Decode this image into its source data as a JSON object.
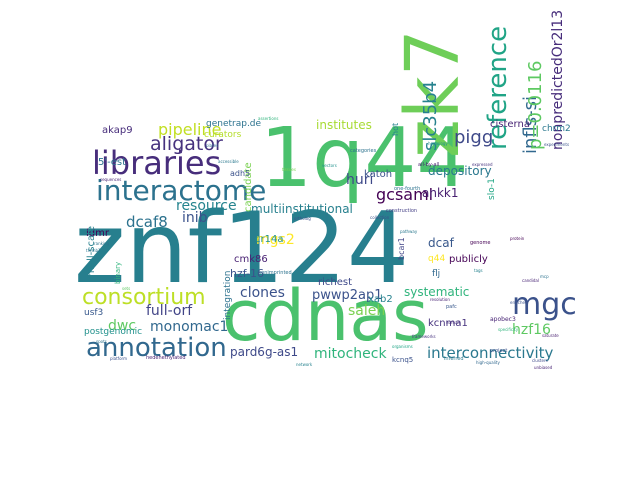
{
  "words": [
    {
      "text": "znf124",
      "color": "#277f8e"
    },
    {
      "text": "1q44",
      "color": "#4ac16d"
    },
    {
      "text": "cdnas",
      "color": "#4ac16d"
    },
    {
      "text": "zk7",
      "color": "#6ece58"
    },
    {
      "text": "libraries",
      "color": "#472d7b"
    },
    {
      "text": "interactome",
      "color": "#2c728e"
    },
    {
      "text": "mgc",
      "color": "#3b528b"
    },
    {
      "text": "reference",
      "color": "#20a486"
    },
    {
      "text": "consortium",
      "color": "#bddf26"
    },
    {
      "text": "annotation",
      "color": "#31688e"
    },
    {
      "text": "aligator",
      "color": "#46327e"
    },
    {
      "text": "pipeline",
      "color": "#c2df23"
    },
    {
      "text": "pigg",
      "color": "#3e4989"
    },
    {
      "text": "slc35b4",
      "color": "#26828e"
    },
    {
      "text": "infls-si",
      "color": "#31688e"
    },
    {
      "text": "p=0.0116",
      "color": "#5ec962"
    },
    {
      "text": "nonpredictedOr2l13",
      "color": "#472d7b"
    },
    {
      "text": "interconnectivity",
      "color": "#2a788e"
    },
    {
      "text": "mitocheck",
      "color": "#2fb47c"
    },
    {
      "text": "pard6g-as1",
      "color": "#3e4989"
    },
    {
      "text": "pwwp2ap1",
      "color": "#3b528b"
    },
    {
      "text": "mgs2",
      "color": "#fde725"
    },
    {
      "text": "full-orf",
      "color": "#414487"
    },
    {
      "text": "clones",
      "color": "#3b528b"
    },
    {
      "text": "monomac1",
      "color": "#31688e"
    },
    {
      "text": "dwc",
      "color": "#5ec962"
    },
    {
      "text": "hzf16",
      "color": "#5ec962"
    },
    {
      "text": "saleh",
      "color": "#7ad151"
    },
    {
      "text": "systematic",
      "color": "#2fb47c"
    },
    {
      "text": "gcsaml",
      "color": "#440154"
    },
    {
      "text": "huri",
      "color": "#3e4989"
    },
    {
      "text": "depository",
      "color": "#2a788e"
    },
    {
      "text": "ankk1",
      "color": "#481f70"
    },
    {
      "text": "dcaf8",
      "color": "#2c728e"
    },
    {
      "text": "resource",
      "color": "#25848e"
    },
    {
      "text": "inib",
      "color": "#3b528b"
    },
    {
      "text": "multiinstitutional",
      "color": "#27808e"
    },
    {
      "text": "institutes",
      "color": "#a8db34"
    },
    {
      "text": "candidate",
      "color": "#7ad151"
    },
    {
      "text": "cr14a",
      "color": "#21918c"
    },
    {
      "text": "hzf-16",
      "color": "#3b528b"
    },
    {
      "text": "cmk86",
      "color": "#482173"
    },
    {
      "text": "richest",
      "color": "#3e4989"
    },
    {
      "text": "integration",
      "color": "#2c728e"
    },
    {
      "text": "xab2",
      "color": "#26828e"
    },
    {
      "text": "dcaf",
      "color": "#38588c"
    },
    {
      "text": "q44",
      "color": "#fde725"
    },
    {
      "text": "flj",
      "color": "#31688e"
    },
    {
      "text": "publicly",
      "color": "#440154"
    },
    {
      "text": "kcnma1",
      "color": "#46327e"
    },
    {
      "text": "katoh",
      "color": "#3b528b"
    },
    {
      "text": "akap9",
      "color": "#472d7b"
    },
    {
      "text": "5'-est",
      "color": "#2c728e"
    },
    {
      "text": "idmr",
      "color": "#440154"
    },
    {
      "text": "small-scale",
      "color": "#27808e"
    },
    {
      "text": "usf3",
      "color": "#38588c"
    },
    {
      "text": "genetrap.de",
      "color": "#2c728e"
    },
    {
      "text": "curators",
      "color": "#b5de2b"
    },
    {
      "text": "adh5",
      "color": "#3b528b"
    },
    {
      "text": "cisterna",
      "color": "#482475"
    },
    {
      "text": "chrm2",
      "color": "#2a788e"
    },
    {
      "text": "slo-1",
      "color": "#21a685"
    },
    {
      "text": "hot",
      "color": "#26828e"
    },
    {
      "text": "bcar1",
      "color": "#414487"
    },
    {
      "text": "postgenomic",
      "color": "#21918c"
    },
    {
      "text": "binary",
      "color": "#2fb47c"
    },
    {
      "text": "kcnq5",
      "color": "#3b528b"
    },
    {
      "text": "hedehethylated",
      "color": "#482475"
    },
    {
      "text": "all-by-all",
      "color": "#481f70"
    },
    {
      "text": "one-fourth",
      "color": "#2c728e"
    },
    {
      "text": "nonimprinted",
      "color": "#2c728e"
    },
    {
      "text": "genome",
      "color": "#440154"
    },
    {
      "text": "apobec3",
      "color": "#482475"
    },
    {
      "text": "pafc",
      "color": "#38588c"
    },
    {
      "text": "inferred",
      "color": "#2a788e"
    },
    {
      "text": "project",
      "color": "#3b528b"
    },
    {
      "text": "construction",
      "color": "#433e85"
    },
    {
      "text": "categories",
      "color": "#2c728e"
    },
    {
      "text": "sequences",
      "color": "#482475"
    },
    {
      "text": "expressed",
      "color": "#46327e"
    },
    {
      "text": "homology",
      "color": "#21918c"
    },
    {
      "text": "specificity",
      "color": "#2fb47c"
    },
    {
      "text": "resolution",
      "color": "#482475"
    },
    {
      "text": "collection",
      "color": "#3b528b"
    },
    {
      "text": "organisms",
      "color": "#20a486"
    },
    {
      "text": "protein",
      "color": "#440154"
    },
    {
      "text": "human",
      "color": "#46327e"
    },
    {
      "text": "cdna",
      "color": "#2a788e"
    },
    {
      "text": "tags",
      "color": "#26828e"
    },
    {
      "text": "clusters",
      "color": "#3e4989"
    },
    {
      "text": "high-quality",
      "color": "#31688e"
    },
    {
      "text": "unbiased",
      "color": "#482475"
    },
    {
      "text": "spots",
      "color": "#2c728e"
    },
    {
      "text": "tissues",
      "color": "#7ad151"
    },
    {
      "text": "ortholog",
      "color": "#3b528b"
    },
    {
      "text": "tremb1",
      "color": "#2c728e"
    },
    {
      "text": "pathway",
      "color": "#2a788e"
    },
    {
      "text": "platform",
      "color": "#3b528b"
    },
    {
      "text": "sets",
      "color": "#5ec962"
    },
    {
      "text": "plates",
      "color": "#31688e"
    },
    {
      "text": "frameworks",
      "color": "#46327e"
    },
    {
      "text": "mcp",
      "color": "#2c728e"
    },
    {
      "text": "saturate",
      "color": "#481f70"
    },
    {
      "text": "enriched",
      "color": "#3b528b"
    },
    {
      "text": "accessible",
      "color": "#2a788e"
    },
    {
      "text": "vectors",
      "color": "#21918c"
    },
    {
      "text": "assertions",
      "color": "#2fb47c"
    },
    {
      "text": "candidal",
      "color": "#482475"
    },
    {
      "text": "ranking",
      "color": "#2c728e"
    },
    {
      "text": "experiments",
      "color": "#3b528b"
    },
    {
      "text": "network",
      "color": "#26828e"
    }
  ]
}
